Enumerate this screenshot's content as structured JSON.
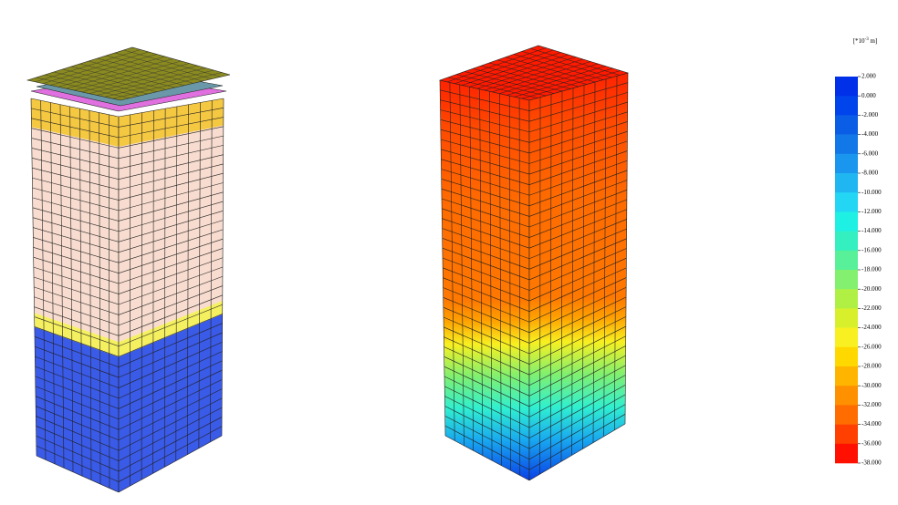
{
  "legend": {
    "unit": {
      "base": "[*10",
      "exponent": "-3",
      "suffix": " m]"
    },
    "labels": [
      "2.000",
      "0.000",
      "-2.000",
      "-4.000",
      "-6.000",
      "-8.000",
      "-10.000",
      "-12.000",
      "-14.000",
      "-16.000",
      "-18.000",
      "-20.000",
      "-22.000",
      "-24.000",
      "-26.000",
      "-28.000",
      "-30.000",
      "-32.000",
      "-34.000",
      "-36.000",
      "-38.000"
    ],
    "colors": [
      "#0030e8",
      "#0044ec",
      "#0a5ee6",
      "#1278e8",
      "#1a96ee",
      "#20b6f2",
      "#22d6f4",
      "#1ef0e4",
      "#34f0c0",
      "#58f098",
      "#84f070",
      "#b0f044",
      "#d8f02c",
      "#f8f020",
      "#ffd800",
      "#ffb400",
      "#ff9000",
      "#ff6c00",
      "#ff4000",
      "#ff1000"
    ]
  }
}
